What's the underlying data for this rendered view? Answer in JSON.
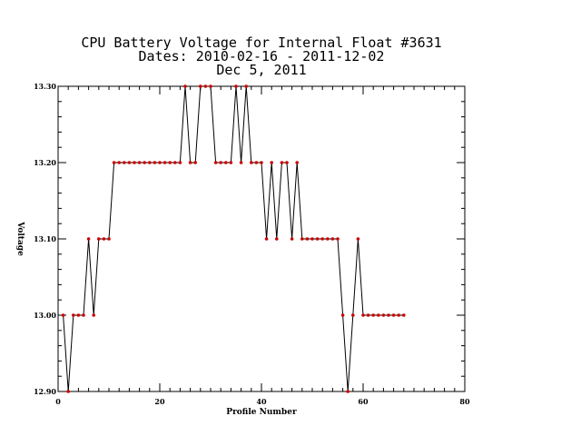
{
  "chart_data": {
    "type": "line",
    "title_lines": [
      "CPU Battery Voltage for Internal Float #3631",
      "Dates:  2010-02-16 -  2011-12-02",
      "Dec  5, 2011"
    ],
    "xlabel": "Profile Number",
    "ylabel": "Voltage",
    "xlim": [
      0,
      80
    ],
    "ylim": [
      12.9,
      13.3
    ],
    "x_ticks": [
      0,
      20,
      40,
      60,
      80
    ],
    "x_tick_labels": [
      "0",
      "20",
      "40",
      "60",
      "80"
    ],
    "y_ticks": [
      12.9,
      13.0,
      13.1,
      13.2,
      13.3
    ],
    "y_tick_labels": [
      "12.90",
      "13.00",
      "13.10",
      "13.20",
      "13.30"
    ],
    "x_minor_step": 2,
    "y_minor_step": 0.02,
    "grid": false,
    "colors": {
      "line": "#000000",
      "marker": "#cc0000"
    },
    "series": [
      {
        "x": [
          1,
          2,
          3,
          4,
          5,
          6,
          7,
          8,
          9,
          10,
          11,
          12,
          13,
          14,
          15,
          16,
          17,
          18,
          19,
          20,
          21,
          22,
          23,
          24,
          25,
          26,
          27,
          28,
          29,
          30,
          31,
          32,
          33,
          34,
          35,
          36,
          37,
          38,
          39,
          40,
          41,
          42,
          43,
          44,
          45,
          46,
          47,
          48,
          49,
          50,
          51,
          52,
          53,
          54,
          55,
          56,
          57,
          58,
          59,
          60,
          61,
          62,
          63,
          64,
          65,
          66,
          67,
          68
        ],
        "y": [
          13.0,
          12.9,
          13.0,
          13.0,
          13.0,
          13.1,
          13.0,
          13.1,
          13.1,
          13.1,
          13.2,
          13.2,
          13.2,
          13.2,
          13.2,
          13.2,
          13.2,
          13.2,
          13.2,
          13.2,
          13.2,
          13.2,
          13.2,
          13.2,
          13.3,
          13.2,
          13.2,
          13.3,
          13.3,
          13.3,
          13.2,
          13.2,
          13.2,
          13.2,
          13.3,
          13.2,
          13.3,
          13.2,
          13.2,
          13.2,
          13.1,
          13.2,
          13.1,
          13.2,
          13.2,
          13.1,
          13.2,
          13.1,
          13.1,
          13.1,
          13.1,
          13.1,
          13.1,
          13.1,
          13.1,
          13.0,
          12.9,
          13.0,
          13.1,
          13.0,
          13.0,
          13.0,
          13.0,
          13.0,
          13.0,
          13.0,
          13.0,
          13.0
        ]
      }
    ]
  }
}
